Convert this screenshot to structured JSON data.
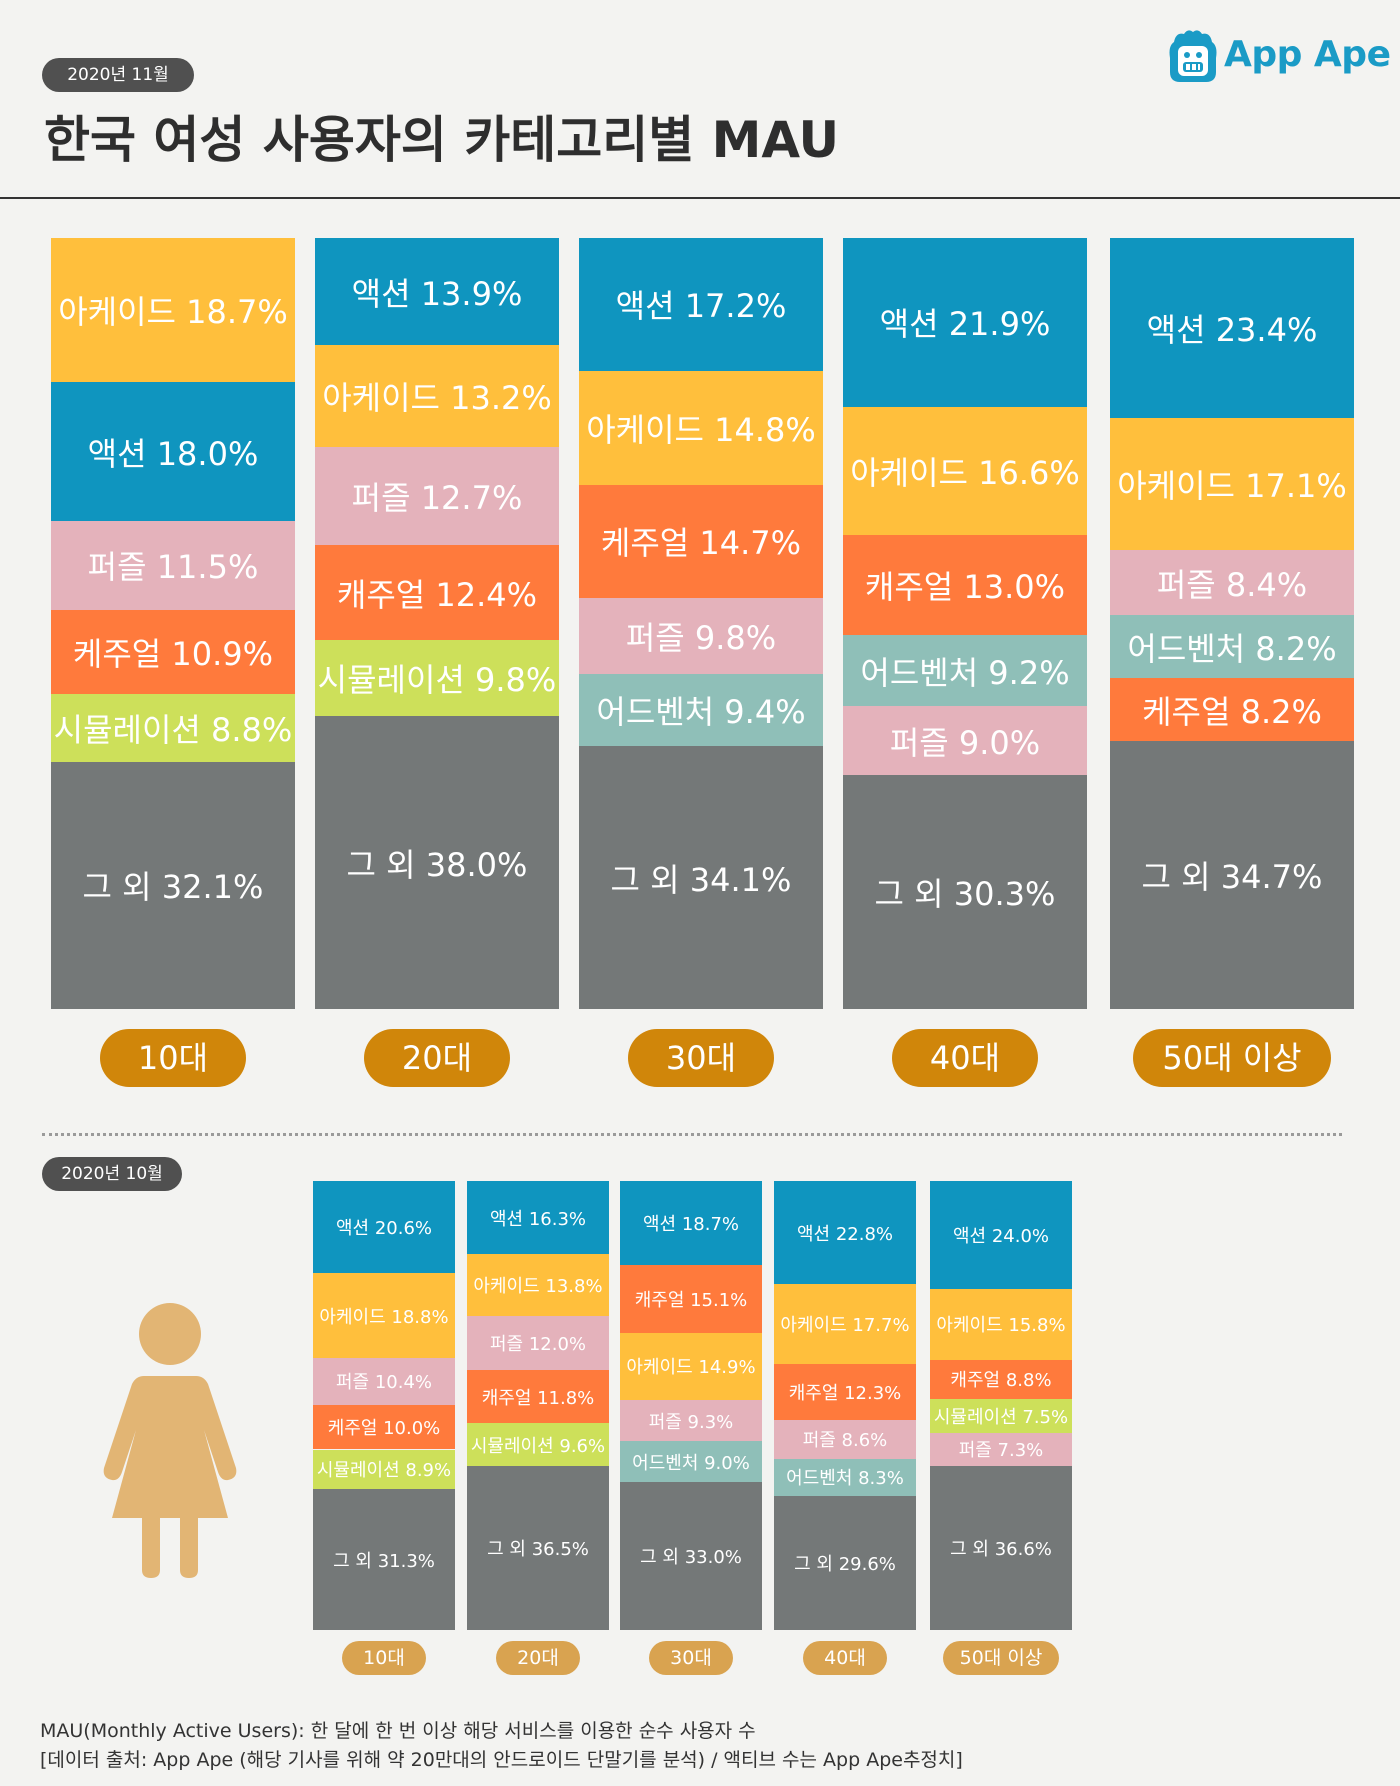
{
  "header": {
    "date_badge": "2020년 11월",
    "title": "한국 여성 사용자의 카테고리별 MAU",
    "logo_text": "App Ape"
  },
  "colors": {
    "액션": "#0f95bf",
    "아케이드": "#ffbf3c",
    "퍼즐": "#e4b2bb",
    "케주얼": "#ff7a3c",
    "캐주얼": "#ff7a3c",
    "시뮬레이션": "#cde05a",
    "어드벤처": "#8fbfb8",
    "그 외": "#747878",
    "age_badge": "#d0860a",
    "age_badge_small": "#d9a350",
    "woman": "#e2b574"
  },
  "chart_data": [
    {
      "type": "bar",
      "stacked": true,
      "normalized": true,
      "period": "2020년 11월",
      "categories": [
        "10대",
        "20대",
        "30대",
        "40대",
        "50대 이상"
      ],
      "stacks": [
        {
          "age": "10대",
          "segments": [
            {
              "label": "아케이드 18.7%",
              "category": "아케이드",
              "value": 18.7
            },
            {
              "label": "액션 18.0%",
              "category": "액션",
              "value": 18.0
            },
            {
              "label": "퍼즐 11.5%",
              "category": "퍼즐",
              "value": 11.5
            },
            {
              "label": "케주얼 10.9%",
              "category": "케주얼",
              "value": 10.9
            },
            {
              "label": "시뮬레이션 8.8%",
              "category": "시뮬레이션",
              "value": 8.8
            },
            {
              "label": "그 외 32.1%",
              "category": "그 외",
              "value": 32.1
            }
          ]
        },
        {
          "age": "20대",
          "segments": [
            {
              "label": "액션 13.9%",
              "category": "액션",
              "value": 13.9
            },
            {
              "label": "아케이드 13.2%",
              "category": "아케이드",
              "value": 13.2
            },
            {
              "label": "퍼즐 12.7%",
              "category": "퍼즐",
              "value": 12.7
            },
            {
              "label": "캐주얼 12.4%",
              "category": "캐주얼",
              "value": 12.4
            },
            {
              "label": "시뮬레이션 9.8%",
              "category": "시뮬레이션",
              "value": 9.8
            },
            {
              "label": "그 외 38.0%",
              "category": "그 외",
              "value": 38.0
            }
          ]
        },
        {
          "age": "30대",
          "segments": [
            {
              "label": "액션 17.2%",
              "category": "액션",
              "value": 17.2
            },
            {
              "label": "아케이드 14.8%",
              "category": "아케이드",
              "value": 14.8
            },
            {
              "label": "케주얼 14.7%",
              "category": "케주얼",
              "value": 14.7
            },
            {
              "label": "퍼즐 9.8%",
              "category": "퍼즐",
              "value": 9.8
            },
            {
              "label": "어드벤처 9.4%",
              "category": "어드벤처",
              "value": 9.4
            },
            {
              "label": "그 외 34.1%",
              "category": "그 외",
              "value": 34.1
            }
          ]
        },
        {
          "age": "40대",
          "segments": [
            {
              "label": "액션 21.9%",
              "category": "액션",
              "value": 21.9
            },
            {
              "label": "아케이드 16.6%",
              "category": "아케이드",
              "value": 16.6
            },
            {
              "label": "캐주얼 13.0%",
              "category": "캐주얼",
              "value": 13.0
            },
            {
              "label": "어드벤처 9.2%",
              "category": "어드벤처",
              "value": 9.2
            },
            {
              "label": "퍼즐 9.0%",
              "category": "퍼즐",
              "value": 9.0
            },
            {
              "label": "그 외 30.3%",
              "category": "그 외",
              "value": 30.3
            }
          ]
        },
        {
          "age": "50대 이상",
          "segments": [
            {
              "label": "액션 23.4%",
              "category": "액션",
              "value": 23.4
            },
            {
              "label": "아케이드 17.1%",
              "category": "아케이드",
              "value": 17.1
            },
            {
              "label": "퍼즐 8.4%",
              "category": "퍼즐",
              "value": 8.4
            },
            {
              "label": "어드벤처 8.2%",
              "category": "어드벤처",
              "value": 8.2
            },
            {
              "label": "케주얼 8.2%",
              "category": "케주얼",
              "value": 8.2
            },
            {
              "label": "그 외 34.7%",
              "category": "그 외",
              "value": 34.7
            }
          ]
        }
      ]
    },
    {
      "type": "bar",
      "stacked": true,
      "normalized": true,
      "period": "2020년 10월",
      "categories": [
        "10대",
        "20대",
        "30대",
        "40대",
        "50대 이상"
      ],
      "stacks": [
        {
          "age": "10대",
          "segments": [
            {
              "label": "액션 20.6%",
              "category": "액션",
              "value": 20.6
            },
            {
              "label": "아케이드 18.8%",
              "category": "아케이드",
              "value": 18.8
            },
            {
              "label": "퍼즐 10.4%",
              "category": "퍼즐",
              "value": 10.4
            },
            {
              "label": "케주얼 10.0%",
              "category": "케주얼",
              "value": 10.0
            },
            {
              "label": "시뮬레이션 8.9%",
              "category": "시뮬레이션",
              "value": 8.9
            },
            {
              "label": "그 외 31.3%",
              "category": "그 외",
              "value": 31.3
            }
          ]
        },
        {
          "age": "20대",
          "segments": [
            {
              "label": "액션 16.3%",
              "category": "액션",
              "value": 16.3
            },
            {
              "label": "아케이드 13.8%",
              "category": "아케이드",
              "value": 13.8
            },
            {
              "label": "퍼즐 12.0%",
              "category": "퍼즐",
              "value": 12.0
            },
            {
              "label": "캐주얼 11.8%",
              "category": "캐주얼",
              "value": 11.8
            },
            {
              "label": "시뮬레이션 9.6%",
              "category": "시뮬레이션",
              "value": 9.6
            },
            {
              "label": "그 외 36.5%",
              "category": "그 외",
              "value": 36.5
            }
          ]
        },
        {
          "age": "30대",
          "segments": [
            {
              "label": "액션 18.7%",
              "category": "액션",
              "value": 18.7
            },
            {
              "label": "캐주얼 15.1%",
              "category": "캐주얼",
              "value": 15.1
            },
            {
              "label": "아케이드 14.9%",
              "category": "아케이드",
              "value": 14.9
            },
            {
              "label": "퍼즐 9.3%",
              "category": "퍼즐",
              "value": 9.3
            },
            {
              "label": "어드벤처 9.0%",
              "category": "어드벤처",
              "value": 9.0
            },
            {
              "label": "그 외 33.0%",
              "category": "그 외",
              "value": 33.0
            }
          ]
        },
        {
          "age": "40대",
          "segments": [
            {
              "label": "액션 22.8%",
              "category": "액션",
              "value": 22.8
            },
            {
              "label": "아케이드 17.7%",
              "category": "아케이드",
              "value": 17.7
            },
            {
              "label": "캐주얼 12.3%",
              "category": "캐주얼",
              "value": 12.3
            },
            {
              "label": "퍼즐 8.6%",
              "category": "퍼즐",
              "value": 8.6
            },
            {
              "label": "어드벤처 8.3%",
              "category": "어드벤처",
              "value": 8.3
            },
            {
              "label": "그 외 29.6%",
              "category": "그 외",
              "value": 29.6
            }
          ]
        },
        {
          "age": "50대 이상",
          "segments": [
            {
              "label": "액션 24.0%",
              "category": "액션",
              "value": 24.0
            },
            {
              "label": "아케이드 15.8%",
              "category": "아케이드",
              "value": 15.8
            },
            {
              "label": "캐주얼 8.8%",
              "category": "캐주얼",
              "value": 8.8
            },
            {
              "label": "시뮬레이션 7.5%",
              "category": "시뮬레이션",
              "value": 7.5
            },
            {
              "label": "퍼즐 7.3%",
              "category": "퍼즐",
              "value": 7.3
            },
            {
              "label": "그 외 36.6%",
              "category": "그 외",
              "value": 36.6
            }
          ]
        }
      ]
    }
  ],
  "footer": {
    "definition": "MAU(Monthly Active Users):  한 달에 한 번 이상 해당 서비스를 이용한 순수 사용자 수",
    "source": "[데이터 출처: App Ape (해당 기사를 위해 약 20만대의 안드로이드 단말기를 분석) / 액티브 수는 App Ape추정치]"
  }
}
